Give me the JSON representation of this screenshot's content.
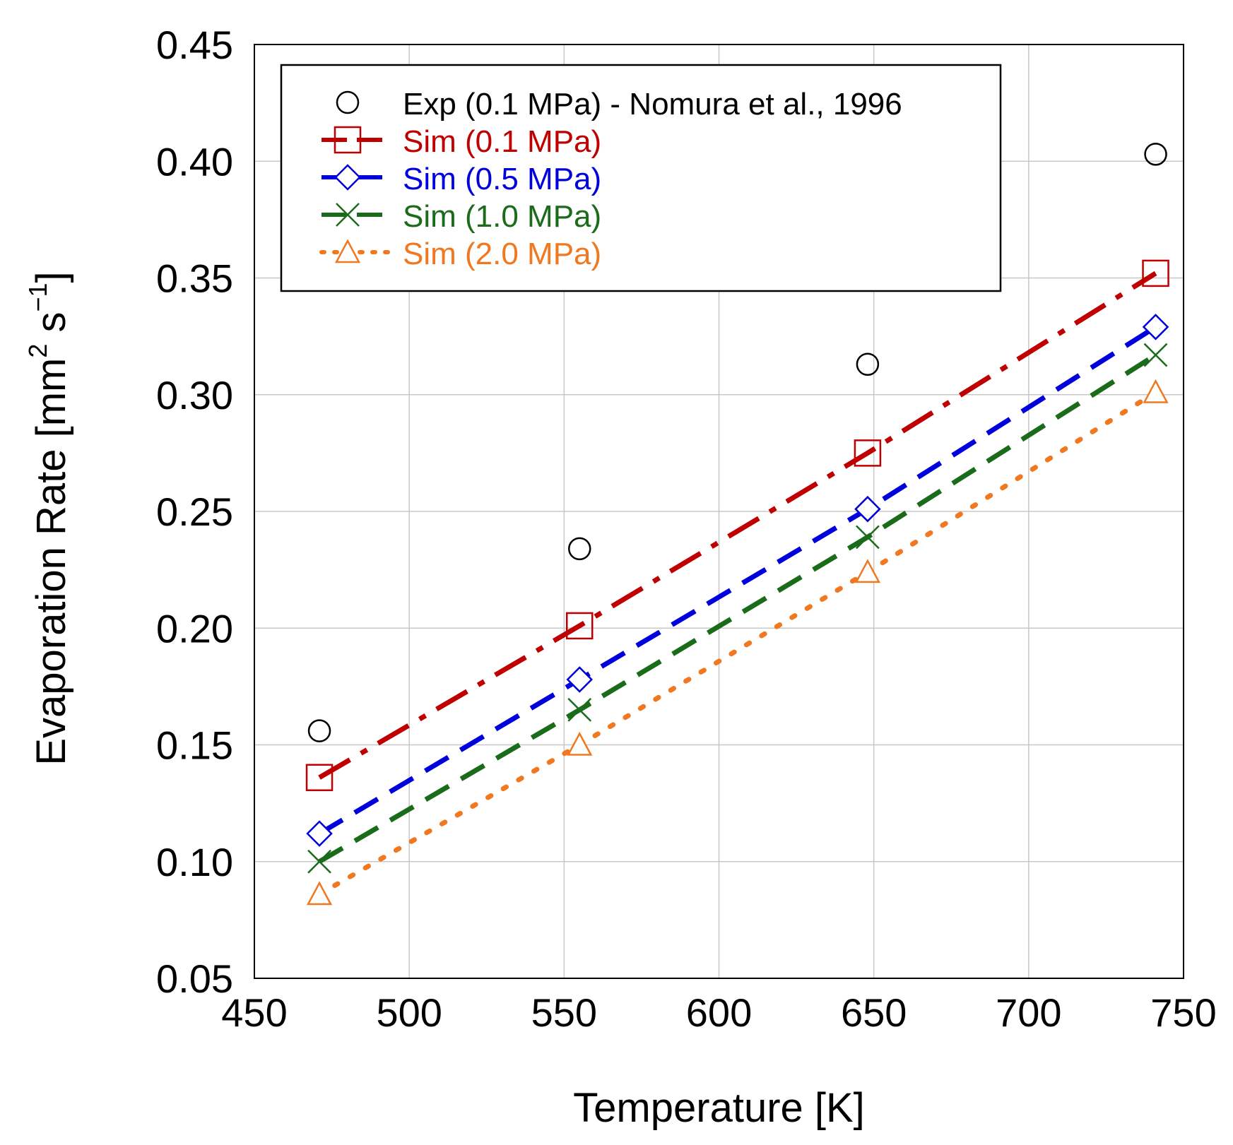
{
  "chart_data": {
    "type": "scatter",
    "xlabel": "Temperature [K]",
    "ylabel": {
      "main": "Evaporation Rate [mm",
      "sup1": "2",
      "mid": " s",
      "sup2": "−1",
      "end": "]"
    },
    "xlim": [
      450,
      750
    ],
    "ylim": [
      0.05,
      0.45
    ],
    "xticks": [
      "450",
      "500",
      "550",
      "600",
      "650",
      "700",
      "750"
    ],
    "yticks": [
      "0.05",
      "0.10",
      "0.15",
      "0.20",
      "0.25",
      "0.30",
      "0.35",
      "0.40",
      "0.45"
    ],
    "grid": true,
    "legend_position": "top-left",
    "series": [
      {
        "name": "Exp (0.1 MPa) - Nomura et al., 1996",
        "color": "#000000",
        "marker": "circle",
        "line": "none",
        "x": [
          471,
          555,
          648,
          741
        ],
        "y": [
          0.156,
          0.234,
          0.313,
          0.403
        ]
      },
      {
        "name": "Sim (0.1 MPa)",
        "color": "#c00000",
        "marker": "square",
        "line": "dashdot",
        "x": [
          471,
          555,
          648,
          741
        ],
        "y": [
          0.136,
          0.201,
          0.275,
          0.352
        ]
      },
      {
        "name": "Sim (0.5 MPa)",
        "color": "#0000dd",
        "marker": "diamond",
        "line": "dash",
        "x": [
          471,
          555,
          648,
          741
        ],
        "y": [
          0.112,
          0.178,
          0.251,
          0.329
        ]
      },
      {
        "name": "Sim (1.0 MPa)",
        "color": "#1a6b1a",
        "marker": "x",
        "line": "dash",
        "x": [
          471,
          555,
          648,
          741
        ],
        "y": [
          0.1,
          0.165,
          0.239,
          0.317
        ]
      },
      {
        "name": "Sim (2.0 MPa)",
        "color": "#f07820",
        "marker": "triangle",
        "line": "dot",
        "x": [
          471,
          555,
          648,
          741
        ],
        "y": [
          0.086,
          0.15,
          0.224,
          0.301
        ]
      }
    ]
  }
}
